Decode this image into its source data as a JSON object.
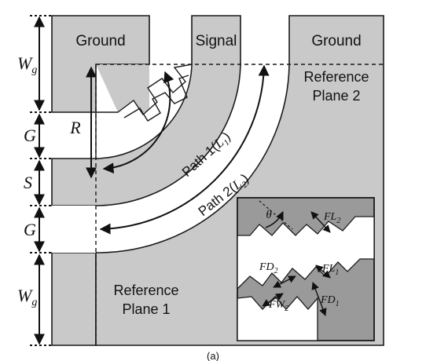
{
  "labels": {
    "ground_left": "Ground",
    "signal": "Signal",
    "ground_right": "Ground",
    "ref_plane_2_l1": "Reference",
    "ref_plane_2_l2": "Plane 2",
    "ref_plane_1_l1": "Reference",
    "ref_plane_1_l2": "Plane 1",
    "path1": "Path 1(",
    "path1_sym": "L",
    "path1_sub": "1",
    "path1_close": ")",
    "path2": "Path 2(",
    "path2_sym": "L",
    "path2_sub": "2",
    "path2_close": ")",
    "R": "R",
    "dim_Wg": "W",
    "dim_Wg_sub": "g",
    "dim_G": "G",
    "dim_S": "S",
    "theta": "θ",
    "FL2": "FL",
    "FL2_sub": "2",
    "FL1": "FL",
    "FL1_sub": "1",
    "FD2": "FD",
    "FD2_sub": "2",
    "FD1": "FD",
    "FD1_sub": "1",
    "FW2": "FW",
    "FW2_sub": "2",
    "caption": "(a)"
  },
  "colors": {
    "metal": "#c9c9c9",
    "inset_metal": "#9a9a9a",
    "outline": "#1a1a1a"
  }
}
